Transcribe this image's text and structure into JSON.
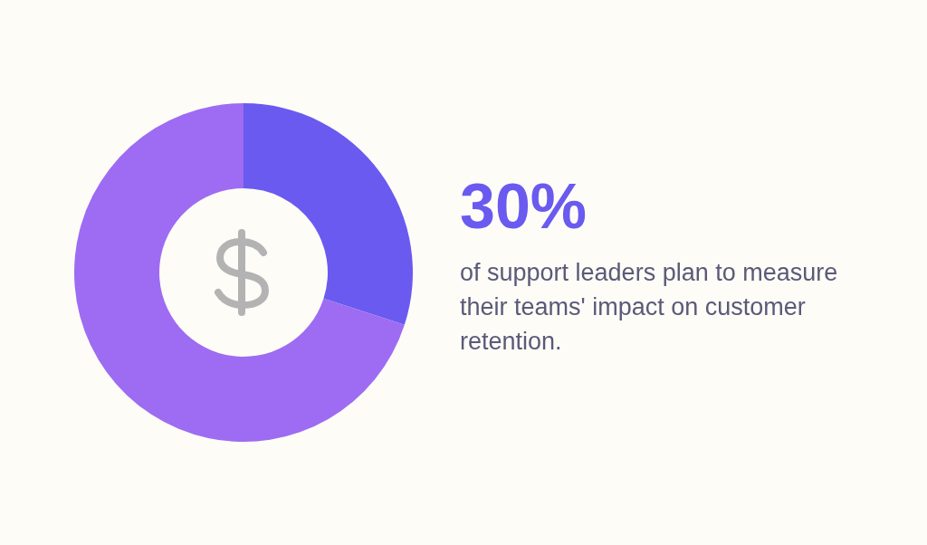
{
  "chart_data": {
    "type": "donut",
    "categories": [
      null,
      null
    ],
    "values": [
      30,
      70
    ],
    "colors": [
      "#6a5af0",
      "#9d6cf2"
    ],
    "value_labels": [
      "30%",
      null
    ],
    "annotations": [
      "of support leaders plan to measure their teams' impact on customer retention."
    ]
  }
}
